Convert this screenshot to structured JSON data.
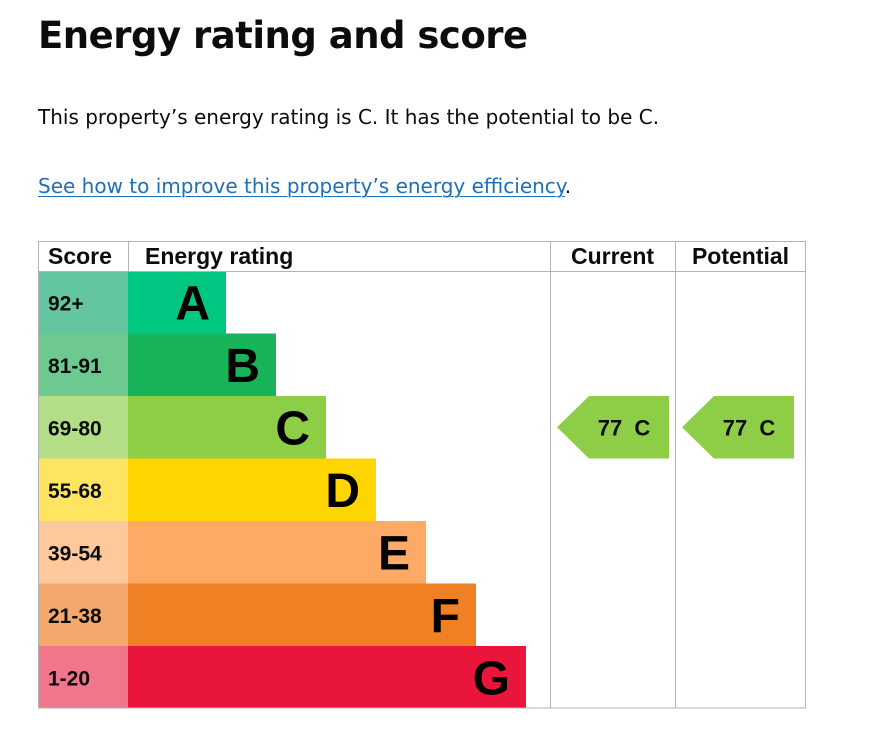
{
  "page": {
    "heading": "Energy rating and score",
    "summary": "This property’s energy rating is C. It has the potential to be C.",
    "link_text": "See how to improve this property’s energy efficiency",
    "link_suffix": "."
  },
  "chart_data": {
    "type": "table",
    "headers": {
      "score": "Score",
      "rating": "Energy rating",
      "current": "Current",
      "potential": "Potential"
    },
    "bands": [
      {
        "letter": "A",
        "range": "92+",
        "color": "#00c781",
        "score_bg": "#63c6a1"
      },
      {
        "letter": "B",
        "range": "81-91",
        "color": "#19b459",
        "score_bg": "#6dc98f"
      },
      {
        "letter": "C",
        "range": "69-80",
        "color": "#8dce46",
        "score_bg": "#b3de86"
      },
      {
        "letter": "D",
        "range": "55-68",
        "color": "#ffd500",
        "score_bg": "#ffe462"
      },
      {
        "letter": "E",
        "range": "39-54",
        "color": "#fcaa65",
        "score_bg": "#fdc89b"
      },
      {
        "letter": "F",
        "range": "21-38",
        "color": "#ef8023",
        "score_bg": "#f4a86b"
      },
      {
        "letter": "G",
        "range": "1-20",
        "color": "#e9153b",
        "score_bg": "#f2768b"
      }
    ],
    "current": {
      "score": 77,
      "band": "C",
      "label": "77  C",
      "color": "#8dce46"
    },
    "potential": {
      "score": 77,
      "band": "C",
      "label": "77  C",
      "color": "#8dce46"
    }
  }
}
